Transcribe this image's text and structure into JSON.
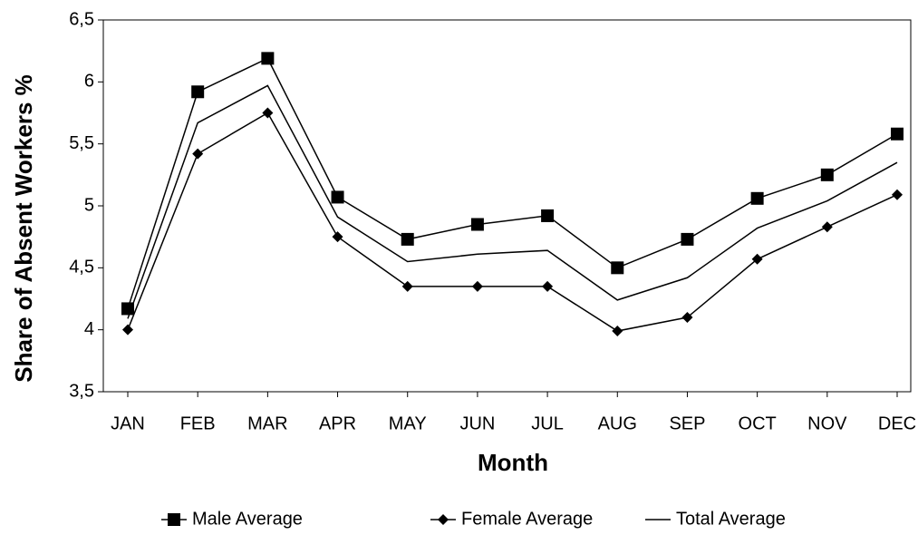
{
  "chart_data": {
    "type": "line",
    "x_label": "Month",
    "y_label": "Share of Absent Workers %",
    "categories": [
      "JAN",
      "FEB",
      "MAR",
      "APR",
      "MAY",
      "JUN",
      "JUL",
      "AUG",
      "SEP",
      "OCT",
      "NOV",
      "DEC"
    ],
    "series": [
      {
        "name": "Male Average",
        "color": "#000000",
        "marker": "square",
        "values": [
          4.17,
          5.92,
          6.19,
          5.07,
          4.73,
          4.85,
          4.92,
          4.5,
          4.73,
          5.06,
          5.25,
          5.58
        ]
      },
      {
        "name": "Female Average",
        "color": "#000000",
        "marker": "diamond",
        "values": [
          4.0,
          5.42,
          5.75,
          4.75,
          4.35,
          4.35,
          4.35,
          3.99,
          4.1,
          4.57,
          4.83,
          5.09
        ]
      },
      {
        "name": "Total Average",
        "color": "#000000",
        "marker": "none",
        "values": [
          4.09,
          5.67,
          5.97,
          4.91,
          4.55,
          4.61,
          4.64,
          4.24,
          4.42,
          4.82,
          5.04,
          5.35
        ]
      }
    ],
    "ylim": [
      3.5,
      6.5
    ],
    "yticks": [
      {
        "value": 3.5,
        "label": "3,5"
      },
      4,
      {
        "value": 4.5,
        "label": "4,5"
      },
      5,
      {
        "value": 5.5,
        "label": "5,5"
      },
      6,
      {
        "value": 6.5,
        "label": "6,5"
      }
    ],
    "grid": false,
    "legend": "bottom"
  }
}
